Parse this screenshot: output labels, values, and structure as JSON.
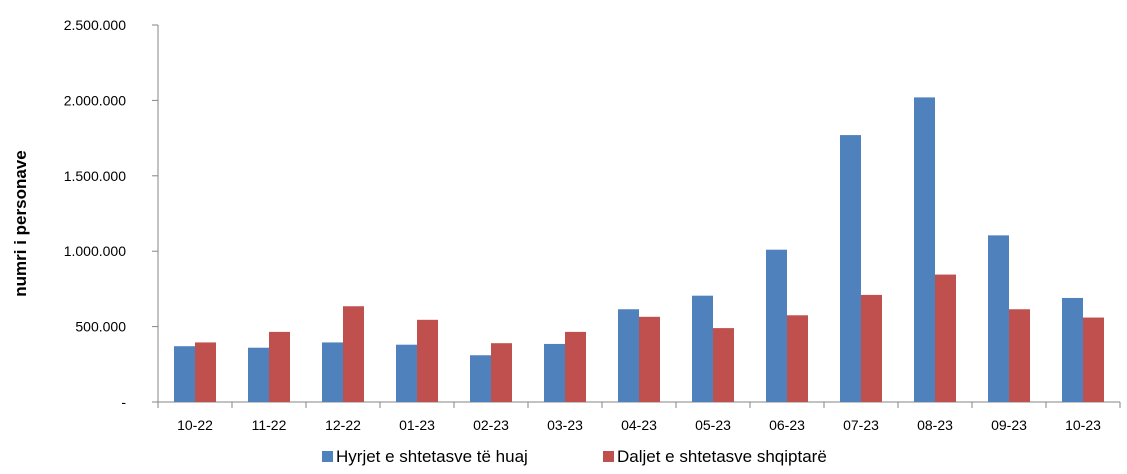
{
  "chart_data": {
    "type": "bar",
    "categories": [
      "10-22",
      "11-22",
      "12-22",
      "01-23",
      "02-23",
      "03-23",
      "04-23",
      "05-23",
      "06-23",
      "07-23",
      "08-23",
      "09-23",
      "10-23"
    ],
    "series": [
      {
        "name": "Hyrjet e shtetasve të huaj",
        "color": "#4F81BD",
        "values": [
          370000,
          360000,
          395000,
          380000,
          310000,
          385000,
          615000,
          705000,
          1010000,
          1770000,
          2020000,
          1105000,
          690000
        ]
      },
      {
        "name": "Daljet e shtetasve shqiptarë",
        "color": "#C0504D",
        "values": [
          395000,
          465000,
          635000,
          545000,
          390000,
          465000,
          565000,
          490000,
          575000,
          710000,
          845000,
          615000,
          560000
        ]
      }
    ],
    "ylabel": "numri i personave",
    "xlabel": "",
    "ylim": [
      0,
      2500000
    ],
    "yticks": [
      0,
      500000,
      1000000,
      1500000,
      2000000,
      2500000
    ],
    "ytick_labels": [
      "-",
      "500.000",
      "1.000.000",
      "1.500.000",
      "2.000.000",
      "2.500.000"
    ],
    "grid": false,
    "legend_position": "bottom"
  }
}
